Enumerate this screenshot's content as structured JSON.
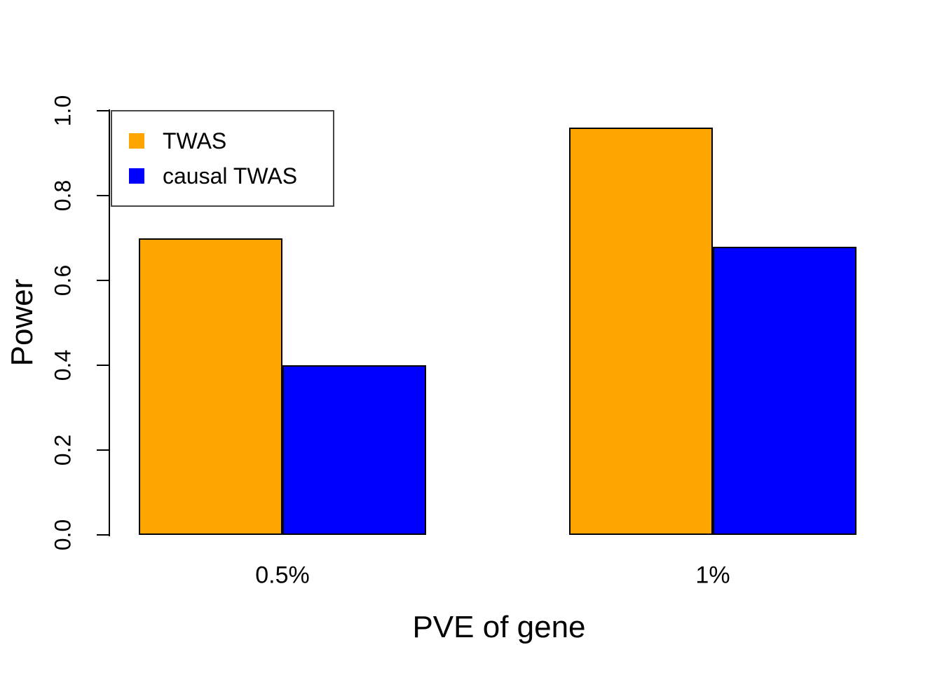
{
  "chart_data": {
    "type": "bar",
    "title": "",
    "xlabel": "PVE of gene",
    "ylabel": "Power",
    "categories": [
      "0.5%",
      "1%"
    ],
    "series": [
      {
        "name": "TWAS",
        "color": "#FFA500",
        "values": [
          0.7,
          0.96
        ]
      },
      {
        "name": "causal TWAS",
        "color": "#0000FF",
        "values": [
          0.4,
          0.68
        ]
      }
    ],
    "ylim": [
      0.0,
      1.0
    ],
    "yticks": [
      0.0,
      0.2,
      0.4,
      0.6,
      0.8,
      1.0
    ],
    "ytick_labels": [
      "0.0",
      "0.2",
      "0.4",
      "0.6",
      "0.8",
      "1.0"
    ],
    "grid": false,
    "legend_position": "top-left",
    "bar_border_color": "#000000",
    "axis_color": "#000000"
  }
}
